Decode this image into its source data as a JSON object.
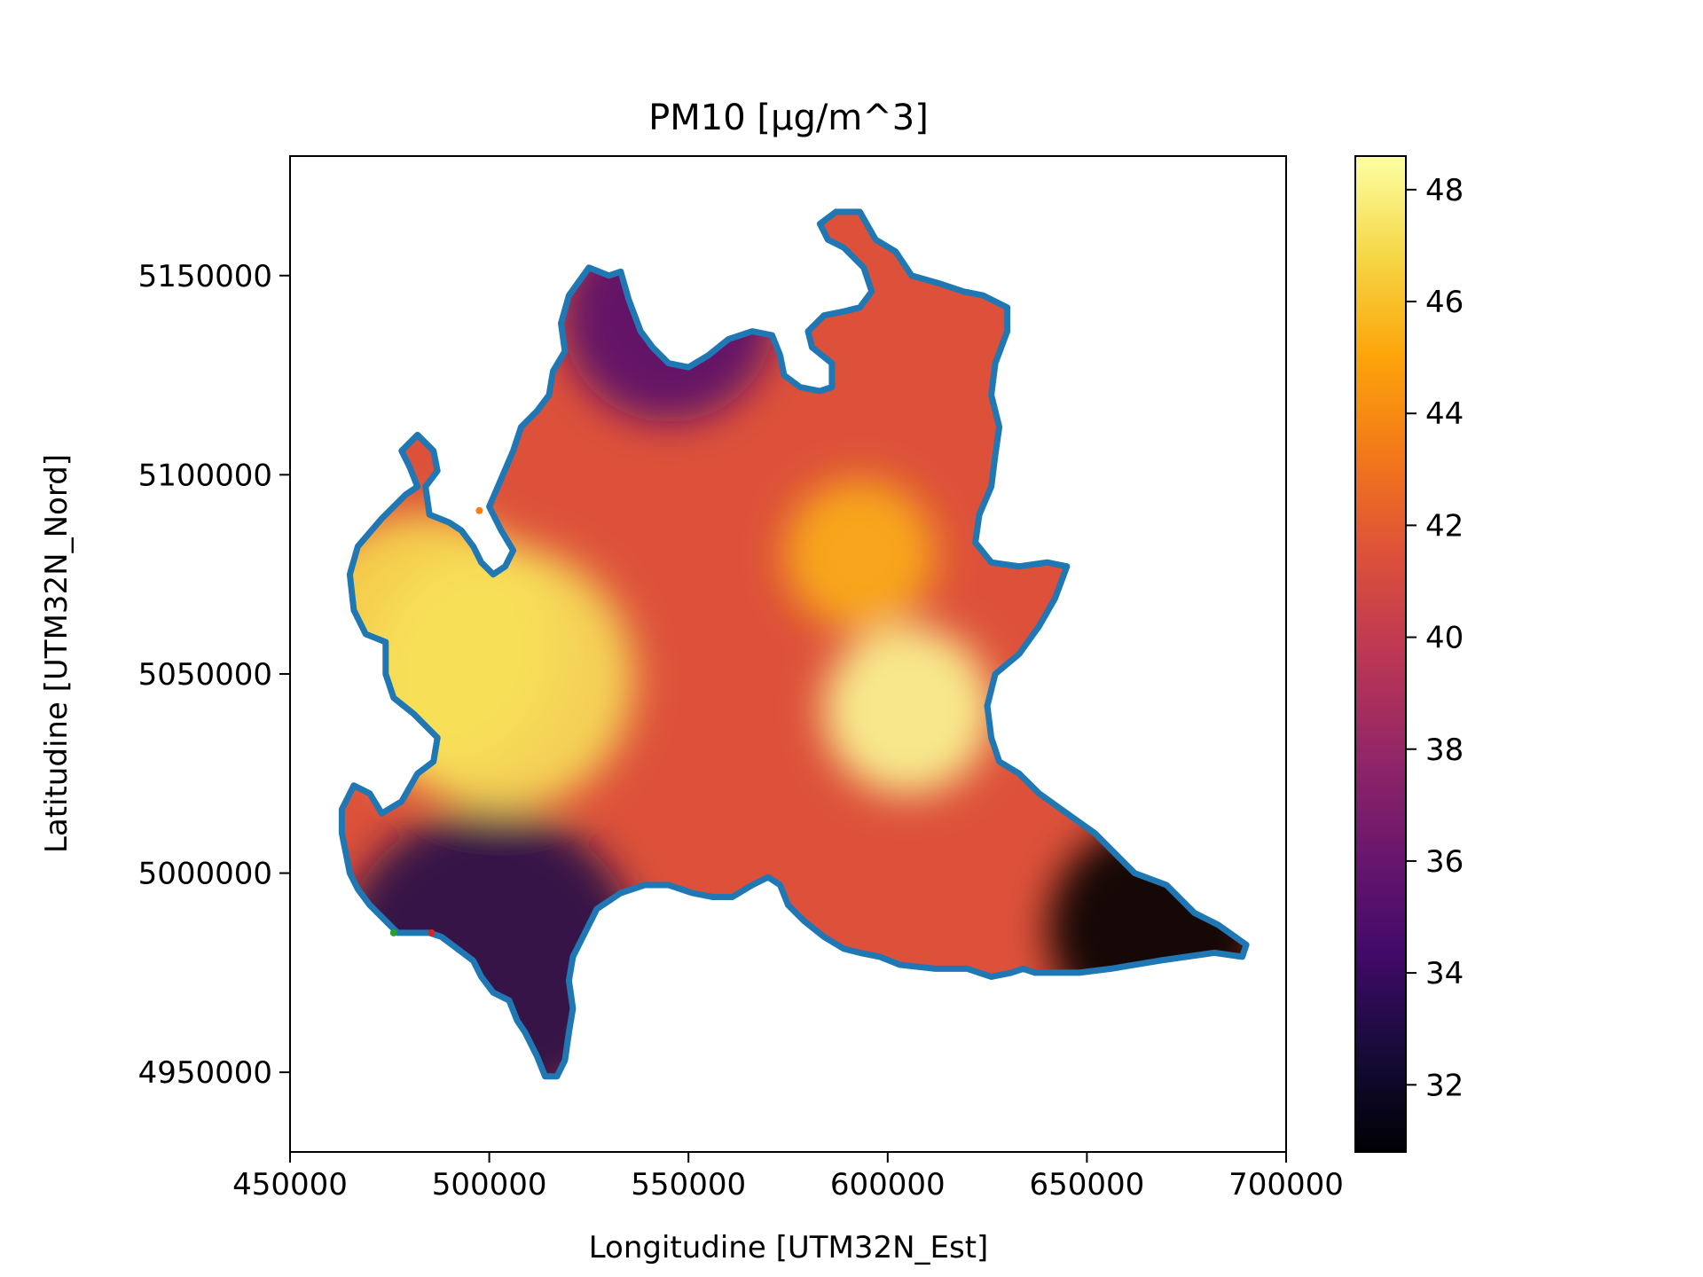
{
  "chart_data": {
    "type": "heatmap",
    "title": "PM10 [µg/m^3]",
    "xlabel": "Longitudine [UTM32N_Est]",
    "ylabel": "Latitudine [UTM32N_Nord]",
    "xlim": [
      450000,
      700000
    ],
    "ylim": [
      4930000,
      5180000
    ],
    "x_ticks": [
      450000,
      500000,
      550000,
      600000,
      650000,
      700000
    ],
    "y_ticks": [
      4950000,
      5000000,
      5050000,
      5100000,
      5150000
    ],
    "colorbar": {
      "colormap": "inferno",
      "range": [
        30.8,
        48.6
      ],
      "ticks": [
        32,
        34,
        36,
        38,
        40,
        42,
        44,
        46,
        48
      ]
    },
    "boundary_color": "#1f77b4",
    "boundary": [
      [
        463000,
        5016000
      ],
      [
        466000,
        5022000
      ],
      [
        470000,
        5020000
      ],
      [
        473000,
        5015000
      ],
      [
        478000,
        5018000
      ],
      [
        482000,
        5025000
      ],
      [
        486000,
        5028000
      ],
      [
        487000,
        5034000
      ],
      [
        481000,
        5040000
      ],
      [
        476000,
        5044000
      ],
      [
        474000,
        5050000
      ],
      [
        474000,
        5058000
      ],
      [
        469000,
        5060000
      ],
      [
        466000,
        5066000
      ],
      [
        465000,
        5075000
      ],
      [
        467000,
        5082000
      ],
      [
        473000,
        5089000
      ],
      [
        479000,
        5095000
      ],
      [
        482000,
        5097000
      ],
      [
        480000,
        5102000
      ],
      [
        478000,
        5106000
      ],
      [
        482000,
        5110000
      ],
      [
        486000,
        5106000
      ],
      [
        487000,
        5101000
      ],
      [
        484000,
        5097000
      ],
      [
        485000,
        5090000
      ],
      [
        490000,
        5088000
      ],
      [
        493000,
        5086000
      ],
      [
        496000,
        5082000
      ],
      [
        498000,
        5078000
      ],
      [
        501000,
        5075000
      ],
      [
        504000,
        5077000
      ],
      [
        506000,
        5081000
      ],
      [
        503000,
        5086000
      ],
      [
        500000,
        5092000
      ],
      [
        503000,
        5099000
      ],
      [
        506000,
        5106000
      ],
      [
        508000,
        5112000
      ],
      [
        512000,
        5116000
      ],
      [
        515000,
        5120000
      ],
      [
        516000,
        5126000
      ],
      [
        519000,
        5131000
      ],
      [
        518000,
        5138000
      ],
      [
        520000,
        5145000
      ],
      [
        525000,
        5152000
      ],
      [
        530000,
        5150000
      ],
      [
        533000,
        5151000
      ],
      [
        535000,
        5144000
      ],
      [
        538000,
        5136000
      ],
      [
        541000,
        5132000
      ],
      [
        545000,
        5128000
      ],
      [
        550000,
        5127000
      ],
      [
        555000,
        5130000
      ],
      [
        560000,
        5134000
      ],
      [
        566000,
        5136000
      ],
      [
        571000,
        5135000
      ],
      [
        573000,
        5130000
      ],
      [
        574000,
        5125000
      ],
      [
        578000,
        5122000
      ],
      [
        583000,
        5121000
      ],
      [
        586000,
        5122000
      ],
      [
        586000,
        5128000
      ],
      [
        581000,
        5132000
      ],
      [
        580000,
        5136000
      ],
      [
        584000,
        5140000
      ],
      [
        589000,
        5141000
      ],
      [
        593000,
        5142000
      ],
      [
        596000,
        5146000
      ],
      [
        594000,
        5152000
      ],
      [
        589000,
        5157000
      ],
      [
        585000,
        5159000
      ],
      [
        583000,
        5163000
      ],
      [
        587000,
        5166000
      ],
      [
        593000,
        5166000
      ],
      [
        597000,
        5159000
      ],
      [
        602000,
        5156000
      ],
      [
        606000,
        5150000
      ],
      [
        613000,
        5148000
      ],
      [
        619000,
        5146000
      ],
      [
        624000,
        5145000
      ],
      [
        630000,
        5142000
      ],
      [
        630000,
        5136000
      ],
      [
        627000,
        5128000
      ],
      [
        626000,
        5120000
      ],
      [
        628000,
        5112000
      ],
      [
        627000,
        5105000
      ],
      [
        626000,
        5097000
      ],
      [
        623000,
        5090000
      ],
      [
        622000,
        5083000
      ],
      [
        626000,
        5078000
      ],
      [
        633000,
        5077000
      ],
      [
        640000,
        5078000
      ],
      [
        645000,
        5077000
      ],
      [
        642000,
        5069000
      ],
      [
        638000,
        5062000
      ],
      [
        633000,
        5055000
      ],
      [
        627000,
        5050000
      ],
      [
        625000,
        5042000
      ],
      [
        626000,
        5034000
      ],
      [
        628000,
        5028000
      ],
      [
        633000,
        5025000
      ],
      [
        638000,
        5020000
      ],
      [
        645000,
        5015000
      ],
      [
        652000,
        5010000
      ],
      [
        657000,
        5005000
      ],
      [
        662000,
        5000000
      ],
      [
        670000,
        4997000
      ],
      [
        677000,
        4990000
      ],
      [
        683000,
        4987000
      ],
      [
        690000,
        4982000
      ],
      [
        689000,
        4979000
      ],
      [
        682000,
        4980000
      ],
      [
        675000,
        4979000
      ],
      [
        668000,
        4978000
      ],
      [
        662000,
        4977000
      ],
      [
        656000,
        4976000
      ],
      [
        648000,
        4975000
      ],
      [
        642000,
        4975000
      ],
      [
        637000,
        4975000
      ],
      [
        634000,
        4976000
      ],
      [
        631000,
        4975000
      ],
      [
        626000,
        4974000
      ],
      [
        620000,
        4976000
      ],
      [
        612000,
        4976000
      ],
      [
        603000,
        4977000
      ],
      [
        598000,
        4979000
      ],
      [
        593000,
        4980000
      ],
      [
        589000,
        4981000
      ],
      [
        584000,
        4984000
      ],
      [
        579000,
        4988000
      ],
      [
        575000,
        4992000
      ],
      [
        573000,
        4997000
      ],
      [
        570000,
        4999000
      ],
      [
        566000,
        4997000
      ],
      [
        561000,
        4994000
      ],
      [
        556000,
        4994000
      ],
      [
        551000,
        4995000
      ],
      [
        545000,
        4997000
      ],
      [
        539000,
        4997000
      ],
      [
        533000,
        4995000
      ],
      [
        527000,
        4991000
      ],
      [
        524000,
        4985000
      ],
      [
        521000,
        4979000
      ],
      [
        520000,
        4973000
      ],
      [
        521000,
        4966000
      ],
      [
        520000,
        4960000
      ],
      [
        519000,
        4953000
      ],
      [
        517000,
        4949000
      ],
      [
        514000,
        4949000
      ],
      [
        512000,
        4954000
      ],
      [
        509000,
        4960000
      ],
      [
        507000,
        4963000
      ],
      [
        505000,
        4968000
      ],
      [
        501000,
        4970000
      ],
      [
        498000,
        4974000
      ],
      [
        496000,
        4978000
      ],
      [
        492000,
        4981000
      ],
      [
        488000,
        4984000
      ],
      [
        485000,
        4985000
      ],
      [
        481000,
        4985000
      ],
      [
        477000,
        4985000
      ],
      [
        474000,
        4988000
      ],
      [
        470000,
        4992000
      ],
      [
        467000,
        4996000
      ],
      [
        465000,
        5000000
      ],
      [
        464000,
        5005000
      ],
      [
        463000,
        5010000
      ]
    ],
    "hotspots": [
      {
        "x": 484000,
        "y": 5057000,
        "value": 47.0
      },
      {
        "x": 503000,
        "y": 5049000,
        "value": 47.2
      },
      {
        "x": 605000,
        "y": 5041000,
        "value": 48.3
      },
      {
        "x": 593000,
        "y": 5080000,
        "value": 45.4
      },
      {
        "x": 500000,
        "y": 4978000,
        "value": 33.2
      },
      {
        "x": 667000,
        "y": 4986000,
        "value": 30.8
      },
      {
        "x": 545000,
        "y": 5140000,
        "value": 35.3
      }
    ],
    "markers": [
      {
        "x": 497500,
        "y": 5091000,
        "color": "#ff7f0e"
      },
      {
        "x": 476000,
        "y": 4985000,
        "color": "#2ca02c"
      },
      {
        "x": 485500,
        "y": 4985000,
        "color": "#d62728"
      }
    ]
  }
}
